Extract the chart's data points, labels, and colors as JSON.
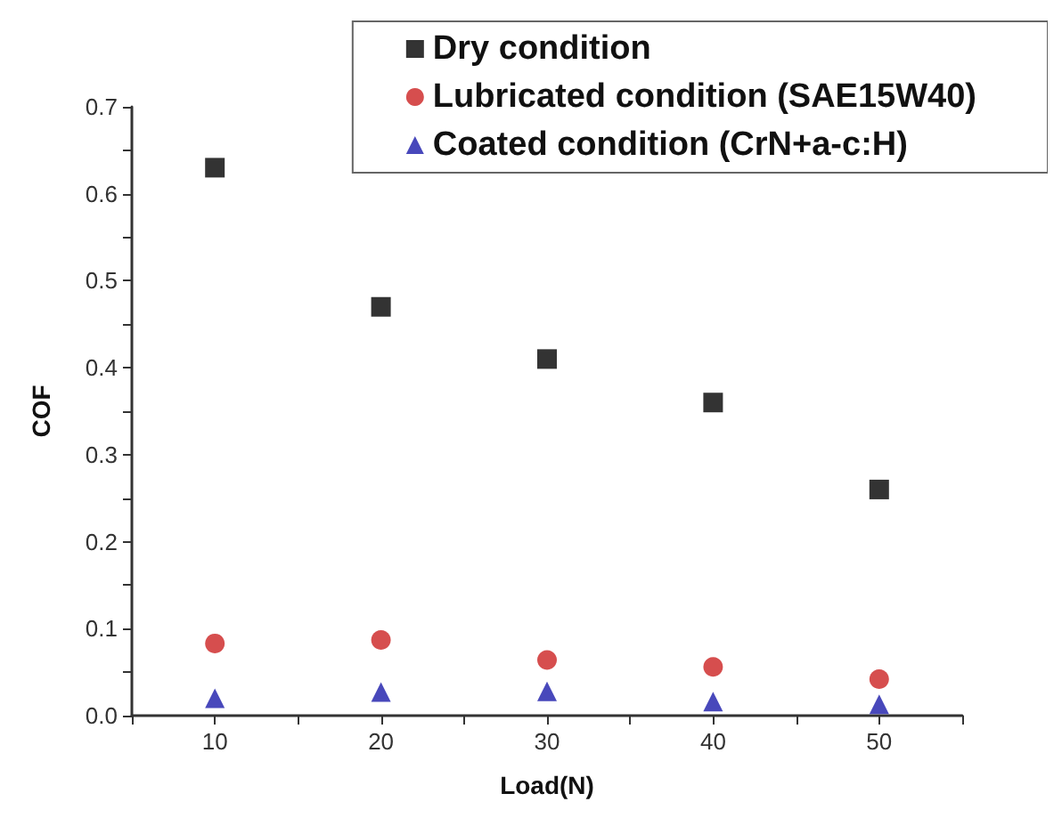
{
  "chart_data": {
    "type": "scatter",
    "xlabel": "Load(N)",
    "ylabel": "COF",
    "x": [
      10,
      20,
      30,
      40,
      50
    ],
    "series": [
      {
        "name": "Dry condition",
        "color": "#000000",
        "marker": "square",
        "values": [
          0.63,
          0.47,
          0.41,
          0.36,
          0.26
        ]
      },
      {
        "name": "Lubricated condition (SAE15W40)",
        "color": "#cc2222",
        "marker": "circle",
        "values": [
          0.083,
          0.087,
          0.064,
          0.056,
          0.042
        ]
      },
      {
        "name": "Coated condition (CrN+a-c:H)",
        "color": "#1a1aaa",
        "marker": "triangle",
        "values": [
          0.02,
          0.027,
          0.028,
          0.016,
          0.013
        ]
      }
    ],
    "xlim": [
      5,
      55
    ],
    "xticks": [
      {
        "value": 5,
        "label": null
      },
      10,
      {
        "value": 15,
        "label": null
      },
      20,
      {
        "value": 25,
        "label": null
      },
      30,
      {
        "value": 35,
        "label": null
      },
      40,
      {
        "value": 45,
        "label": null
      },
      50,
      {
        "value": 55,
        "label": null
      }
    ],
    "ylim": [
      0,
      0.7
    ],
    "yticks": [
      {
        "value": 0,
        "label": "0.0"
      },
      {
        "value": 0.05,
        "label": null
      },
      0.1,
      {
        "value": 0.15,
        "label": null
      },
      0.2,
      {
        "value": 0.25,
        "label": null
      },
      0.3,
      {
        "value": 0.35,
        "label": null
      },
      0.4,
      {
        "value": 0.45,
        "label": null
      },
      0.5,
      {
        "value": 0.55,
        "label": null
      },
      0.6,
      {
        "value": 0.65,
        "label": null
      },
      0.7
    ],
    "grid": false,
    "legend": "top right"
  }
}
